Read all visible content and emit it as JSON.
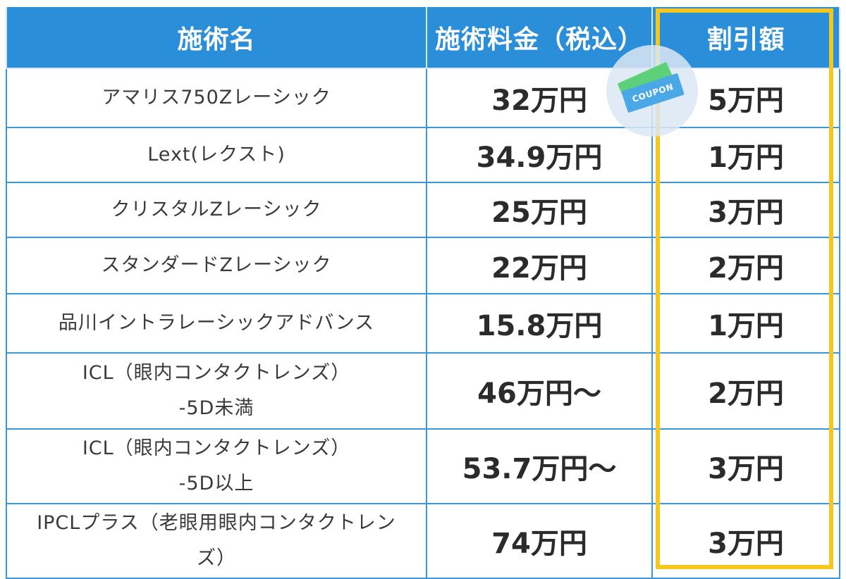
{
  "table": {
    "headers": [
      "施術名",
      "施術料金（税込）",
      "割引額"
    ],
    "rows": [
      {
        "name_line1": "アマリス750Zレーシック",
        "name_line2": "",
        "price": "32万円",
        "discount": "5万円"
      },
      {
        "name_line1": "Lext(レクスト)",
        "name_line2": "",
        "price": "34.9万円",
        "discount": "1万円"
      },
      {
        "name_line1": "クリスタルZレーシック",
        "name_line2": "",
        "price": "25万円",
        "discount": "3万円"
      },
      {
        "name_line1": "スタンダードZレーシック",
        "name_line2": "",
        "price": "22万円",
        "discount": "2万円"
      },
      {
        "name_line1": "品川イントラレーシックアドバンス",
        "name_line2": "",
        "price": "15.8万円",
        "discount": "1万円"
      },
      {
        "name_line1": "ICL（眼内コンタクトレンズ）",
        "name_line2": "-5D未満",
        "price": "46万円〜",
        "discount": "2万円"
      },
      {
        "name_line1": "ICL（眼内コンタクトレンズ）",
        "name_line2": "-5D以上",
        "price": "53.7万円〜",
        "discount": "3万円"
      },
      {
        "name_line1": "IPCLプラス（老眼用眼内コンタクトレン",
        "name_line2": "ズ）",
        "price": "74万円",
        "discount": "3万円"
      }
    ]
  },
  "coupon": {
    "label": "COUPON",
    "icon": "coupon-ticket-icon"
  },
  "colors": {
    "header_bg": "#2a8fd8",
    "border": "#3a97da",
    "highlight": "#f6c61f"
  }
}
